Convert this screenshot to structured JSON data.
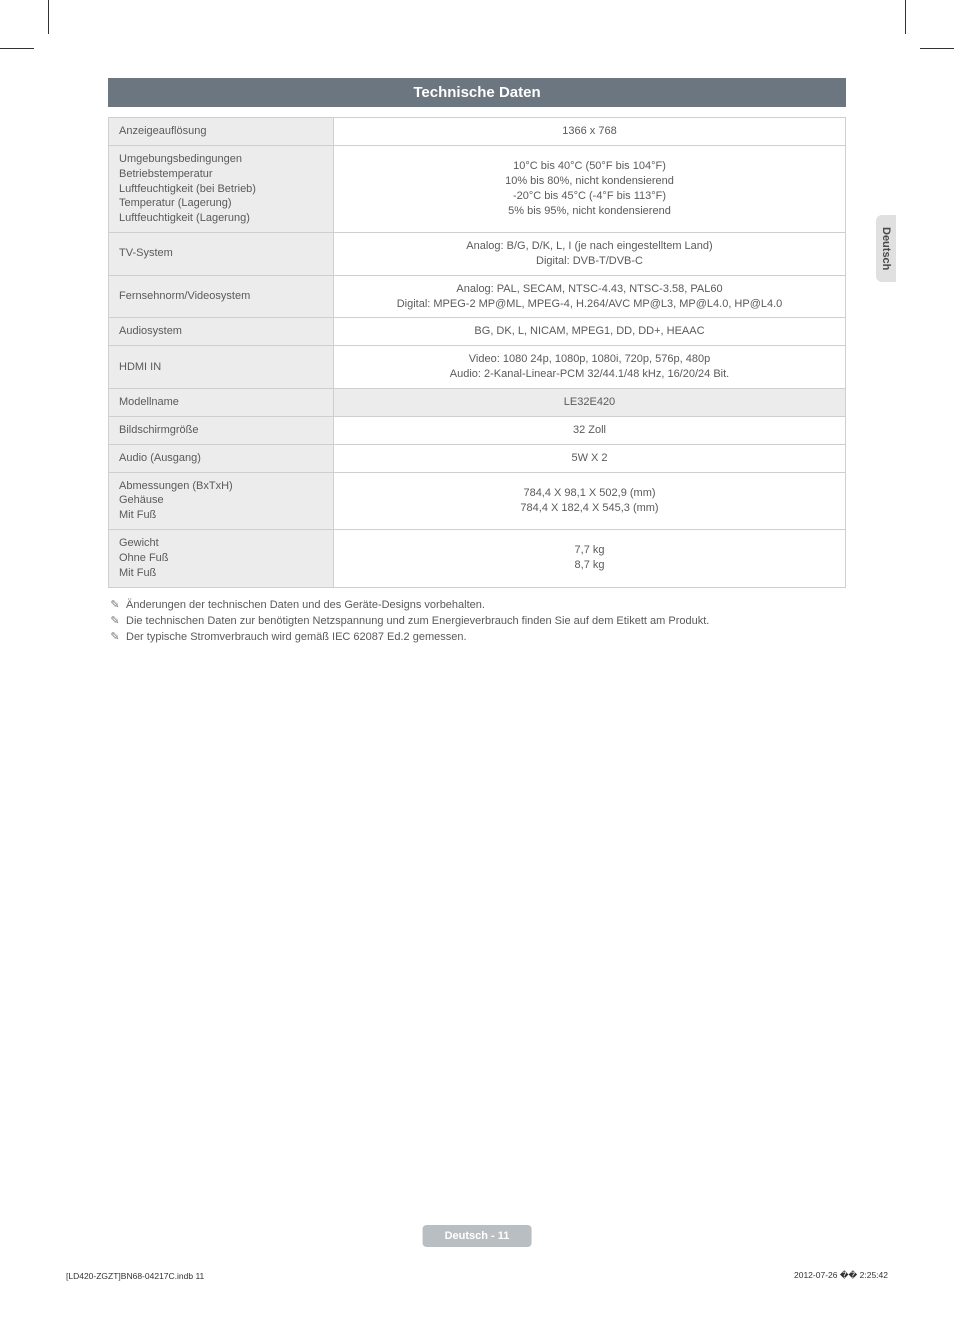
{
  "header": {
    "title": "Technische Daten"
  },
  "side_tab": {
    "label": "Deutsch"
  },
  "table": {
    "rows": [
      {
        "label": "Anzeigeauflösung",
        "value": "1366 x 768"
      },
      {
        "label": "Umgebungsbedingungen\nBetriebstemperatur\nLuftfeuchtigkeit (bei Betrieb)\nTemperatur (Lagerung)\nLuftfeuchtigkeit (Lagerung)",
        "value": "10°C bis 40°C (50°F bis 104°F)\n10% bis 80%, nicht kondensierend\n-20°C bis 45°C (-4°F  bis 113°F)\n5% bis 95%, nicht kondensierend"
      },
      {
        "label": "TV-System",
        "value": "Analog: B/G, D/K, L, I (je nach eingestelltem Land)\nDigital: DVB-T/DVB-C"
      },
      {
        "label": "Fernsehnorm/Videosystem",
        "value": "Analog: PAL, SECAM, NTSC-4.43, NTSC-3.58, PAL60\nDigital: MPEG-2 MP@ML, MPEG-4, H.264/AVC MP@L3, MP@L4.0, HP@L4.0"
      },
      {
        "label": "Audiosystem",
        "value": "BG, DK, L, NICAM, MPEG1, DD, DD+, HEAAC"
      },
      {
        "label": "HDMI IN",
        "value": "Video: 1080 24p, 1080p, 1080i, 720p, 576p, 480p\nAudio: 2-Kanal-Linear-PCM 32/44.1/48 kHz, 16/20/24 Bit."
      },
      {
        "label": "Modellname",
        "value": "LE32E420",
        "model": true
      },
      {
        "label": "Bildschirmgröße",
        "value": "32 Zoll"
      },
      {
        "label": "Audio (Ausgang)",
        "value": "5W X 2"
      },
      {
        "label": "Abmessungen (BxTxH)\nGehäuse\nMit Fuß",
        "value": "784,4 X 98,1 X 502,9 (mm)\n784,4 X 182,4 X 545,3 (mm)"
      },
      {
        "label": "Gewicht\nOhne Fuß\nMit Fuß",
        "value": "7,7 kg\n8,7 kg"
      }
    ]
  },
  "notes": {
    "icon": "✎",
    "items": [
      "Änderungen der technischen Daten und des Geräte-Designs vorbehalten.",
      "Die technischen Daten zur benötigten Netzspannung und zum Energieverbrauch finden Sie auf dem Etikett am Produkt.",
      "Der typische Stromverbrauch wird gemäß IEC 62087 Ed.2 gemessen."
    ]
  },
  "footer": {
    "pill": "Deutsch - 11",
    "left": "[LD420-ZGZT]BN68-04217C.indb   11",
    "right": "2012-07-26   �� 2:25:42"
  },
  "colors": {
    "header_bg": "#6c7680",
    "header_text": "#ffffff",
    "label_bg": "#ececec",
    "value_bg": "#ffffff",
    "border": "#cfcfcf",
    "text": "#5a5a5a",
    "side_tab_bg": "#e0e0e0",
    "pill_bg": "#b9bec3"
  }
}
